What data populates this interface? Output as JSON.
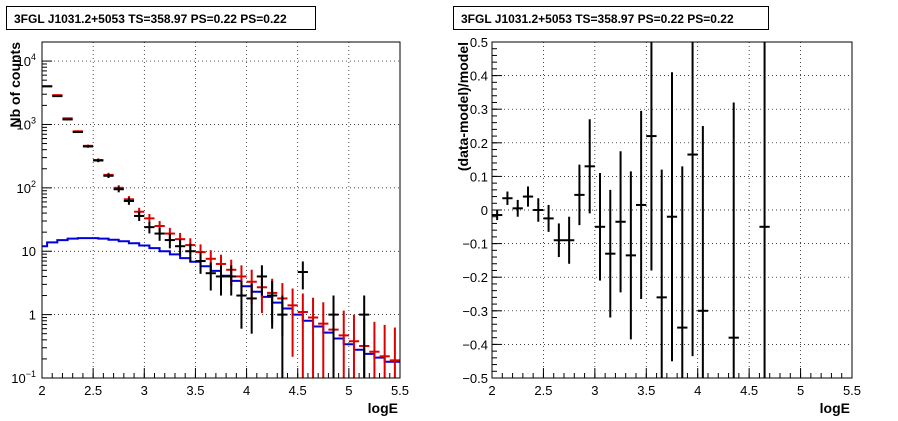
{
  "chart_data": [
    {
      "type": "line",
      "title": "3FGL J1031.2+5053 TS=358.97 PS=0.22 PS=0.22",
      "xlabel": "logE",
      "ylabel": "Nb of counts",
      "xlim": [
        2,
        5.5
      ],
      "ylim": [
        0.1,
        20000
      ],
      "yscale": "log",
      "grid": true,
      "xticks": [
        "2",
        "2.5",
        "3",
        "3.5",
        "4",
        "4.5",
        "5",
        "5.5"
      ],
      "yticks": [
        {
          "value": 0.1,
          "label": "10",
          "exp": "−1"
        },
        {
          "value": 1,
          "label": "1",
          "exp": ""
        },
        {
          "value": 10,
          "label": "10",
          "exp": ""
        },
        {
          "value": 100,
          "label": "10",
          "exp": "2"
        },
        {
          "value": 1000,
          "label": "10",
          "exp": "3"
        },
        {
          "value": 10000,
          "label": "10",
          "exp": "4"
        }
      ],
      "bin_width": 0.1,
      "colors": {
        "data": "#000000",
        "model_points": "#dd0000",
        "model_line": "#0000dd"
      },
      "series": [
        {
          "role": "data",
          "x": [
            2.05,
            2.15,
            2.25,
            2.35,
            2.45,
            2.55,
            2.65,
            2.75,
            2.85,
            2.95,
            3.05,
            3.15,
            3.25,
            3.35,
            3.45,
            3.55,
            3.65,
            3.75,
            3.85,
            3.95,
            4.05,
            4.15,
            4.25,
            4.35,
            4.55,
            4.85,
            5.15
          ],
          "y": [
            4000,
            2800,
            1200,
            760,
            450,
            270,
            155,
            95,
            62,
            36,
            24,
            19,
            15,
            12,
            10,
            7,
            4.5,
            4,
            4,
            2,
            1.8,
            4,
            2,
            1,
            4.7,
            1,
            1
          ],
          "err_lo": [
            60,
            50,
            35,
            28,
            21,
            16,
            12,
            10,
            8,
            6,
            4.9,
            4.4,
            3.9,
            3.5,
            3.2,
            2.6,
            2.1,
            2,
            2,
            1.4,
            1.3,
            2,
            1.4,
            1,
            2.2,
            0.95,
            0.95
          ],
          "err_hi": [
            60,
            50,
            35,
            28,
            21,
            16,
            12,
            10,
            8,
            6,
            4.9,
            4.4,
            3.9,
            3.5,
            3.2,
            2.6,
            2.1,
            2,
            2,
            1.4,
            1.3,
            2,
            1.4,
            1,
            2.2,
            1,
            1
          ]
        },
        {
          "role": "model_points",
          "x": [
            2.05,
            2.15,
            2.25,
            2.35,
            2.45,
            2.55,
            2.65,
            2.75,
            2.85,
            2.95,
            3.05,
            3.15,
            3.25,
            3.35,
            3.45,
            3.55,
            3.65,
            3.75,
            3.85,
            3.95,
            4.05,
            4.15,
            4.25,
            4.35,
            4.45,
            4.55,
            4.65,
            4.75,
            4.85,
            4.95,
            5.05,
            5.15,
            5.25,
            5.35,
            5.45
          ],
          "y": [
            4000,
            2900,
            1250,
            780,
            460,
            275,
            160,
            100,
            66,
            42,
            33,
            25,
            19,
            15.5,
            12.5,
            9.7,
            7.6,
            6.3,
            5.1,
            4,
            3.3,
            2.7,
            2.2,
            1.8,
            1.4,
            1.1,
            0.9,
            0.72,
            0.58,
            0.47,
            0.38,
            0.32,
            0.26,
            0.22,
            0.19
          ]
        },
        {
          "role": "model_line",
          "x": [
            2,
            2.1,
            2.2,
            2.3,
            2.4,
            2.5,
            2.6,
            2.7,
            2.8,
            2.9,
            3,
            3.1,
            3.2,
            3.3,
            3.4,
            3.5,
            3.6,
            3.7,
            3.8,
            3.9,
            4,
            4.1,
            4.2,
            4.3,
            4.4,
            4.5,
            4.6,
            4.7,
            4.8,
            4.9,
            5,
            5.1,
            5.2,
            5.3,
            5.4,
            5.5
          ],
          "y": [
            12,
            13.8,
            15,
            15.8,
            16.1,
            16.1,
            15.8,
            15.2,
            14.4,
            13.4,
            12.3,
            11.2,
            10,
            8.9,
            7.8,
            6.8,
            5.8,
            4.9,
            4.1,
            3.4,
            2.8,
            2.3,
            1.9,
            1.55,
            1.25,
            1,
            0.8,
            0.65,
            0.52,
            0.42,
            0.34,
            0.28,
            0.24,
            0.21,
            0.18,
            0.18
          ]
        }
      ]
    },
    {
      "type": "scatter",
      "title": "3FGL J1031.2+5053 TS=358.97 PS=0.22 PS=0.22",
      "xlabel": "logE",
      "ylabel": "(data-model)/model",
      "xlim": [
        2,
        5.5
      ],
      "ylim": [
        -0.5,
        0.5
      ],
      "grid": true,
      "xticks": [
        "2",
        "2.5",
        "3",
        "3.5",
        "4",
        "4.5",
        "5",
        "5.5"
      ],
      "yticks": [
        "−0.5",
        "−0.4",
        "−0.3",
        "−0.2",
        "−0.1",
        "0",
        "0.1",
        "0.2",
        "0.3",
        "0.4",
        "0.5"
      ],
      "bin_width": 0.1,
      "series": [
        {
          "role": "residuals",
          "x": [
            2.05,
            2.15,
            2.25,
            2.35,
            2.45,
            2.55,
            2.65,
            2.75,
            2.85,
            2.95,
            3.05,
            3.15,
            3.25,
            3.35,
            3.45,
            3.55,
            3.65,
            3.75,
            3.85,
            3.95,
            4.05,
            4.35,
            4.65
          ],
          "y": [
            -0.015,
            0.035,
            0.005,
            0.04,
            0.0,
            -0.025,
            -0.09,
            -0.09,
            0.045,
            0.13,
            -0.05,
            -0.13,
            -0.035,
            -0.135,
            0.015,
            0.22,
            -0.26,
            -0.02,
            -0.35,
            0.165,
            -0.3,
            -0.38,
            -0.05
          ],
          "err": [
            0.015,
            0.02,
            0.025,
            0.03,
            0.035,
            0.04,
            0.05,
            0.07,
            0.09,
            0.14,
            0.16,
            0.19,
            0.21,
            0.25,
            0.28,
            0.4,
            0.38,
            0.43,
            0.48,
            0.6,
            0.55,
            0.7,
            0.9
          ]
        }
      ]
    }
  ]
}
